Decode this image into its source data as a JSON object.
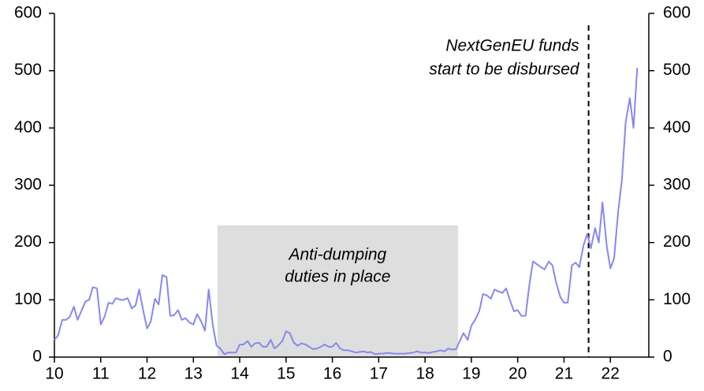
{
  "chart_data": {
    "type": "line",
    "x": [
      10,
      10.08,
      10.17,
      10.25,
      10.33,
      10.42,
      10.5,
      10.58,
      10.67,
      10.75,
      10.83,
      10.92,
      11,
      11.08,
      11.17,
      11.25,
      11.33,
      11.42,
      11.5,
      11.58,
      11.67,
      11.75,
      11.83,
      11.92,
      12,
      12.08,
      12.17,
      12.25,
      12.33,
      12.42,
      12.5,
      12.58,
      12.67,
      12.75,
      12.83,
      12.92,
      13,
      13.08,
      13.17,
      13.25,
      13.33,
      13.42,
      13.5,
      13.58,
      13.67,
      13.75,
      13.83,
      13.92,
      14,
      14.08,
      14.17,
      14.25,
      14.33,
      14.42,
      14.5,
      14.58,
      14.67,
      14.75,
      14.83,
      14.92,
      15,
      15.08,
      15.17,
      15.25,
      15.33,
      15.42,
      15.5,
      15.58,
      15.67,
      15.75,
      15.83,
      15.92,
      16,
      16.08,
      16.17,
      16.25,
      16.33,
      16.42,
      16.5,
      16.58,
      16.67,
      16.75,
      16.83,
      16.92,
      17,
      17.08,
      17.17,
      17.25,
      17.33,
      17.42,
      17.5,
      17.58,
      17.67,
      17.75,
      17.83,
      17.92,
      18,
      18.08,
      18.17,
      18.25,
      18.33,
      18.42,
      18.5,
      18.58,
      18.67,
      18.75,
      18.83,
      18.92,
      19,
      19.08,
      19.17,
      19.25,
      19.33,
      19.42,
      19.5,
      19.58,
      19.67,
      19.75,
      19.83,
      19.92,
      20,
      20.08,
      20.17,
      20.25,
      20.33,
      20.42,
      20.5,
      20.58,
      20.67,
      20.75,
      20.83,
      20.92,
      21,
      21.08,
      21.17,
      21.25,
      21.33,
      21.42,
      21.5,
      21.58,
      21.67,
      21.75,
      21.83,
      21.92,
      22,
      22.08,
      22.17,
      22.25,
      22.33,
      22.42,
      22.5,
      22.58
    ],
    "series": [
      {
        "color": "#8888ee",
        "values": [
          30,
          38,
          65,
          65,
          70,
          88,
          65,
          80,
          97,
          100,
          122,
          120,
          57,
          70,
          95,
          93,
          103,
          100,
          100,
          103,
          85,
          90,
          118,
          80,
          50,
          62,
          102,
          92,
          143,
          140,
          72,
          73,
          82,
          65,
          68,
          60,
          57,
          75,
          62,
          46,
          118,
          55,
          20,
          15,
          5,
          8,
          8,
          8,
          22,
          22,
          28,
          18,
          24,
          25,
          18,
          18,
          30,
          15,
          20,
          28,
          45,
          42,
          25,
          20,
          24,
          22,
          18,
          14,
          15,
          18,
          22,
          18,
          18,
          25,
          15,
          12,
          12,
          10,
          8,
          9,
          10,
          8,
          9,
          5,
          6,
          6,
          7,
          7,
          6,
          6,
          6,
          6,
          7,
          8,
          10,
          8,
          8,
          7,
          9,
          10,
          12,
          10,
          15,
          13,
          14,
          28,
          42,
          30,
          55,
          65,
          80,
          110,
          108,
          102,
          118,
          115,
          112,
          120,
          100,
          80,
          82,
          72,
          72,
          125,
          167,
          162,
          157,
          153,
          167,
          160,
          130,
          105,
          95,
          95,
          160,
          165,
          157,
          195,
          215,
          190,
          225,
          200,
          270,
          195,
          155,
          172,
          255,
          310,
          410,
          452,
          400,
          505
        ]
      }
    ],
    "xlim": [
      10,
      22.83
    ],
    "xticks": [
      10,
      11,
      12,
      13,
      14,
      15,
      16,
      17,
      18,
      19,
      20,
      21,
      22
    ],
    "ylim": [
      0,
      600
    ],
    "yticks": [
      0,
      100,
      200,
      300,
      400,
      500,
      600
    ],
    "y2lim": [
      0,
      600
    ],
    "y2ticks": [
      0,
      100,
      200,
      300,
      400,
      500,
      600
    ],
    "shaded_span": {
      "x": [
        13.52,
        18.71
      ],
      "y": [
        0,
        230
      ],
      "color": "#dedede",
      "label": [
        "Anti-dumping",
        "duties in place"
      ]
    },
    "vline": {
      "x": 21.53,
      "label": [
        "NextGenEU funds",
        "start to be disbursed"
      ]
    }
  }
}
